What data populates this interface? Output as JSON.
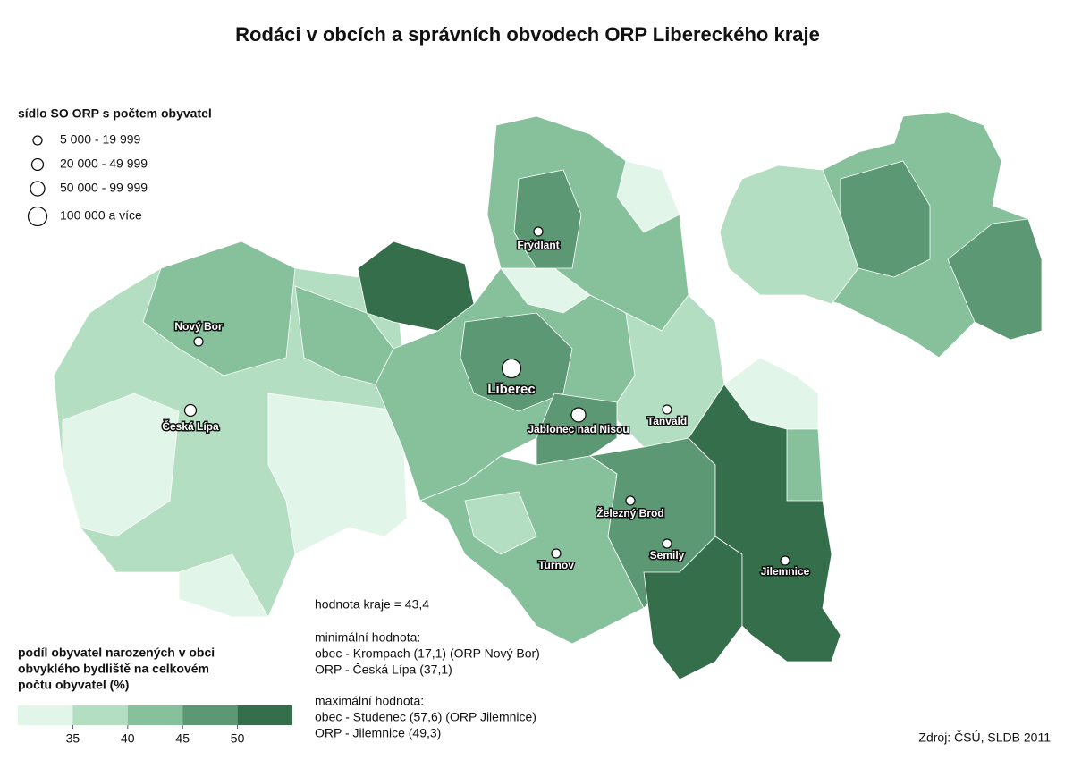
{
  "title": "Rodáci v obcích a správních obvodech ORP Libereckého kraje",
  "city_legend": {
    "title": "sídlo SO ORP s počtem obyvatel",
    "items": [
      "5 000 - 19 999",
      "20 000 - 49 999",
      "50 000 - 99 999",
      "100 000 a více"
    ]
  },
  "cities": [
    "Frýdlant",
    "Nový Bor",
    "Liberec",
    "Česká Lípa",
    "Jablonec nad Nisou",
    "Tanvald",
    "Železný Brod",
    "Semily",
    "Turnov",
    "Jilemnice"
  ],
  "color_legend": {
    "title": [
      "podíl obyvatel narozených v obci",
      "obvyklého bydliště na celkovém",
      "počtu obyvatel (%)"
    ],
    "colors": [
      "#e2f5e9",
      "#b3dec1",
      "#86c19c",
      "#5b9873",
      "#356e4b"
    ],
    "ticks": [
      35,
      40,
      45,
      50
    ]
  },
  "notes": [
    "hodnota kraje = 43,4",
    "minimální hodnota:",
    "obec - Krompach (17,1) (ORP Nový Bor)",
    "ORP - Česká Lípa (37,1)",
    "maximální hodnota:",
    "obec - Studenec (57,6) (ORP Jilemnice)",
    "ORP - Jilemnice (49,3)"
  ],
  "source": "Zdroj: ČSÚ, SLDB 2011"
}
